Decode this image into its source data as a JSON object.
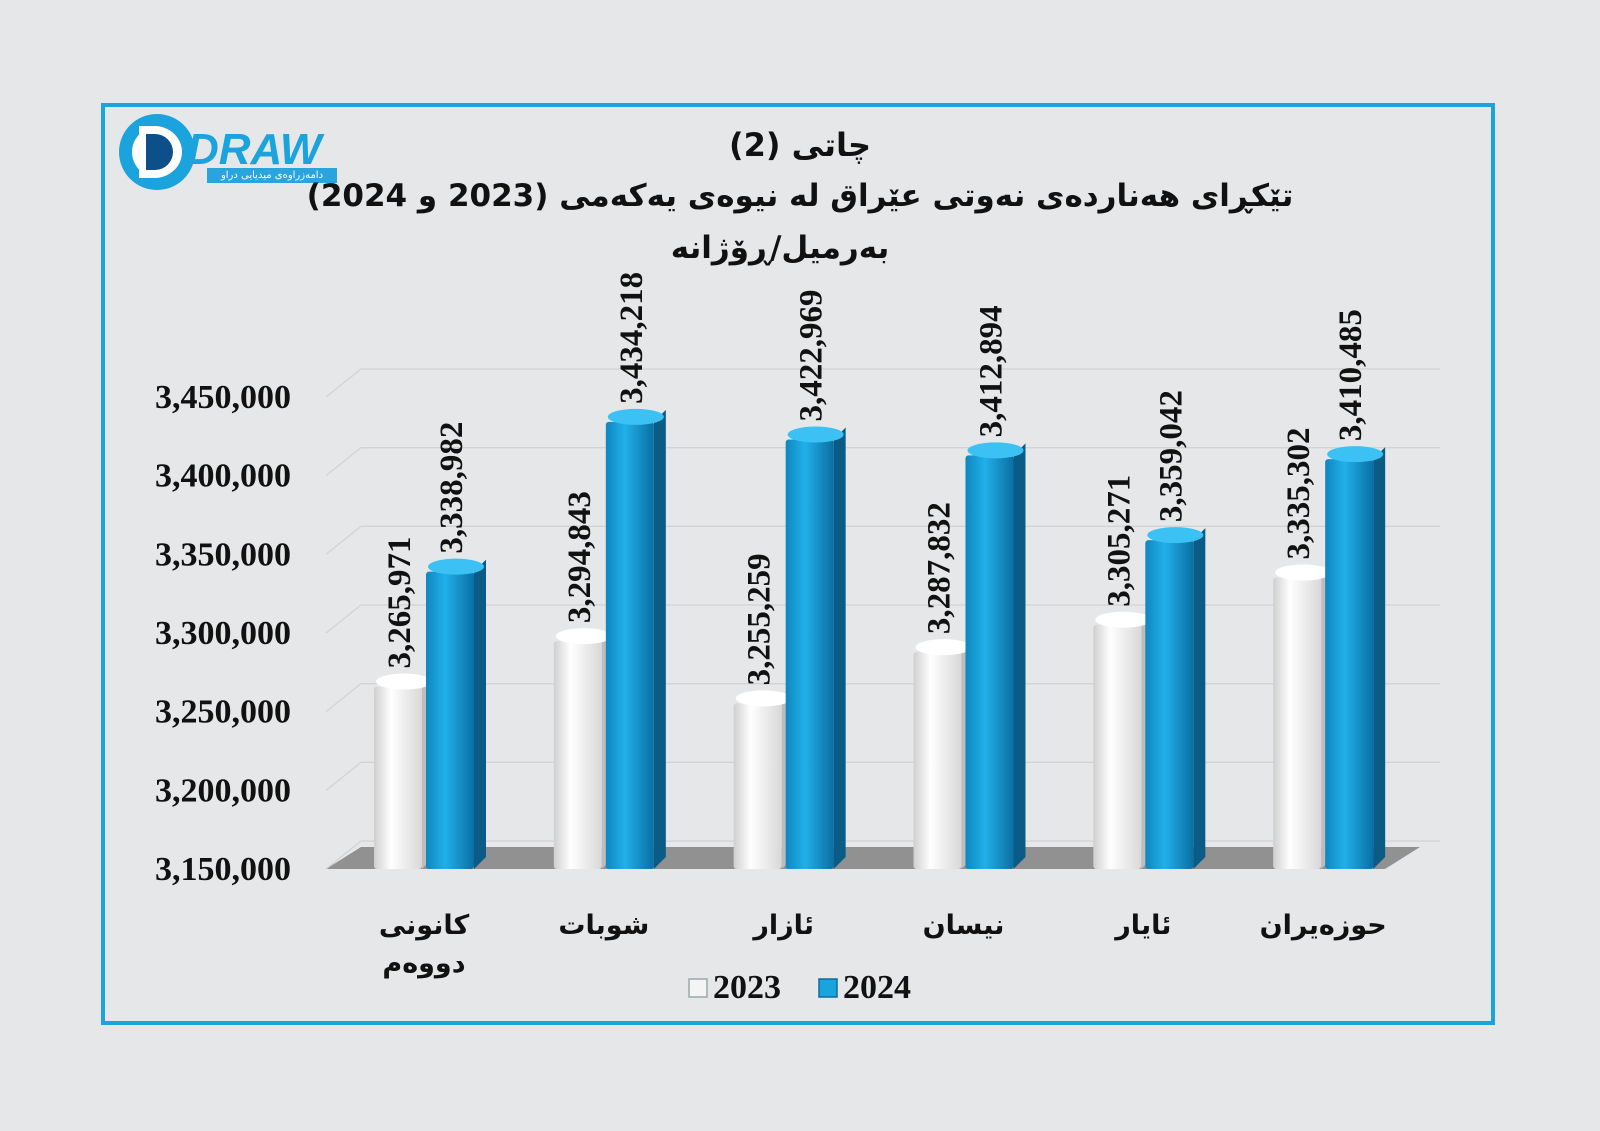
{
  "brand": {
    "logo_text": "DRAW",
    "tagline": "دامەزراوەی میدیایی دراو",
    "colors": {
      "primary": "#1aa3dc",
      "dark": "#0d4f8b"
    }
  },
  "chart_data": {
    "type": "bar",
    "title_lines": [
      "چاتی (2)",
      "تێکڕای هەناردەی نەوتی عێراق لە نیوەی یەکەمی (2023 و 2024)",
      "بەرمیل/ڕۆژانە"
    ],
    "categories": [
      [
        "کانونی",
        "دووەم"
      ],
      [
        "شوبات"
      ],
      [
        "ئازار"
      ],
      [
        "نیسان"
      ],
      [
        "ئایار"
      ],
      [
        "حوزەیران"
      ]
    ],
    "series": [
      {
        "name": "2023",
        "color": "#f2f2f2",
        "values": [
          3265971,
          3294843,
          3255259,
          3287832,
          3305271,
          3335302
        ],
        "labels": [
          "3,265,971",
          "3,294,843",
          "3,255,259",
          "3,287,832",
          "3,305,271",
          "3,335,302"
        ]
      },
      {
        "name": "2024",
        "color": "#1aa3dc",
        "values": [
          3338982,
          3434218,
          3422969,
          3412894,
          3359042,
          3410485
        ],
        "labels": [
          "3,338,982",
          "3,434,218",
          "3,422,969",
          "3,412,894",
          "3,359,042",
          "3,410,485"
        ]
      }
    ],
    "yticks": [
      "3,150,000",
      "3,200,000",
      "3,250,000",
      "3,300,000",
      "3,350,000",
      "3,400,000",
      "3,450,000"
    ],
    "ylim": [
      3150000,
      3450000
    ],
    "grid": true,
    "legend_position": "bottom"
  }
}
